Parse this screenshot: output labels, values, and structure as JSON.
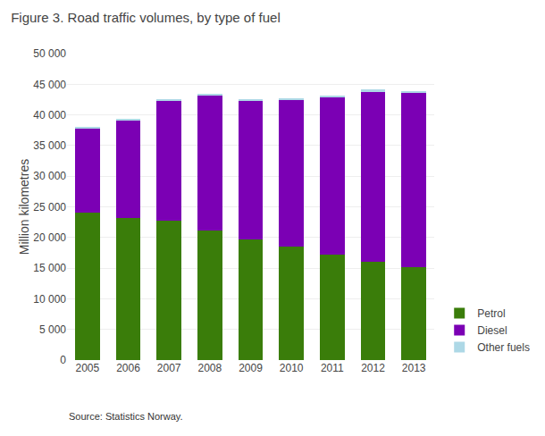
{
  "chart_data": {
    "type": "bar",
    "title": "Figure 3. Road traffic volumes, by type of fuel",
    "ylabel": "Million kilometres",
    "annotations": [
      "Source: Statistics Norway."
    ],
    "categories": [
      "2005",
      "2006",
      "2007",
      "2008",
      "2009",
      "2010",
      "2011",
      "2012",
      "2013"
    ],
    "series": [
      {
        "name": "Petrol",
        "color": "#3a7d0a",
        "values": [
          24000,
          23200,
          22800,
          21200,
          19700,
          18500,
          17200,
          16100,
          15100
        ]
      },
      {
        "name": "Diesel",
        "color": "#7b00b4",
        "values": [
          13800,
          16000,
          19500,
          22000,
          22700,
          24000,
          25700,
          27700,
          28500
        ]
      },
      {
        "name": "Other fuels",
        "color": "#add8e6",
        "values": [
          200,
          200,
          200,
          200,
          200,
          200,
          300,
          300,
          300
        ]
      }
    ],
    "stacked": true,
    "ylim": [
      0,
      50000
    ],
    "yticks": [
      0,
      {
        "value": 5000,
        "label": "5 000"
      },
      {
        "value": 10000,
        "label": "10 000"
      },
      {
        "value": 15000,
        "label": "15 000"
      },
      {
        "value": 20000,
        "label": "20 000"
      },
      {
        "value": 25000,
        "label": "25 000"
      },
      {
        "value": 30000,
        "label": "30 000"
      },
      {
        "value": 35000,
        "label": "35 000"
      },
      {
        "value": 40000,
        "label": "40 000"
      },
      {
        "value": 45000,
        "label": "45 000"
      },
      {
        "value": 50000,
        "label": "50 000"
      }
    ],
    "grid": true,
    "legend": "lower right"
  }
}
